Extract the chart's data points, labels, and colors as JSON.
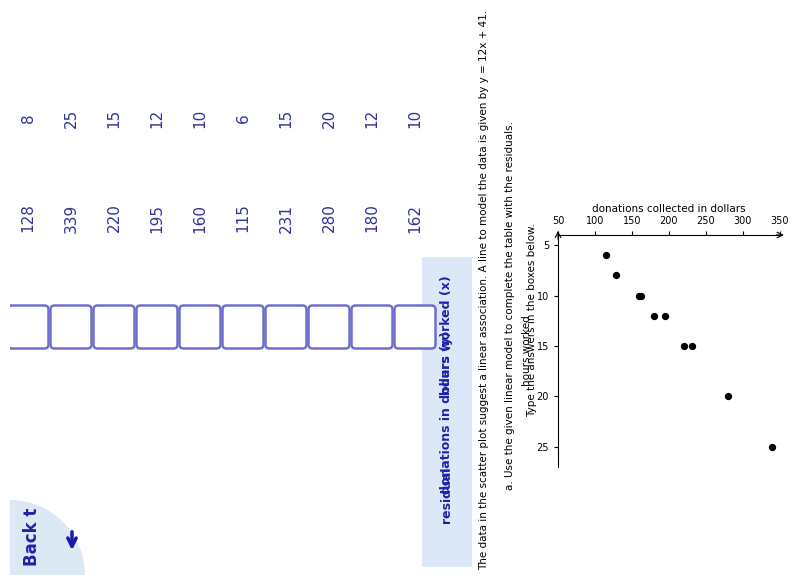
{
  "hours_worked": [
    10,
    12,
    20,
    15,
    6,
    10,
    12,
    15,
    25,
    8
  ],
  "donations": [
    162,
    180,
    280,
    231,
    115,
    160,
    195,
    220,
    339,
    128
  ],
  "page_bg": "#ffffff",
  "header_bg": "#dce8f8",
  "col1_header": "hours worked (x)",
  "col2_header": "donations in dollars (y)",
  "col3_header": "residual",
  "title_text": "The data in the scatter plot suggest a linear association. A line to model the data is given by y = 12x + 41.",
  "subtitle_text": "a. Use the given linear model to complete the table with the residuals.",
  "instruction_text": "Type the answers in the boxes below.",
  "scatter_xlabel": "donations collected in dollars",
  "scatter_ylabel": "hours worked",
  "box_edge_color": "#7070cc",
  "text_color": "#2222aa",
  "back_text": "Back t",
  "arrow_color": "#1a1aaa",
  "num_color": "#333399"
}
